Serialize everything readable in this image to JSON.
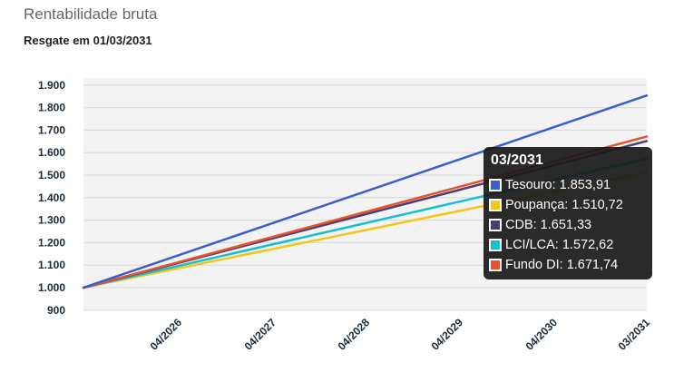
{
  "header": {
    "title": "Rentabilidade bruta",
    "subtitle": "Resgate em 01/03/2031"
  },
  "chart_data": {
    "type": "line",
    "title": "Rentabilidade bruta",
    "subtitle": "Resgate em 01/03/2031",
    "x_tick_labels": [
      "04/2026",
      "04/2027",
      "04/2028",
      "04/2029",
      "04/2030",
      "03/2031"
    ],
    "y_tick_labels": [
      "900",
      "1.000",
      "1.100",
      "1.200",
      "1.300",
      "1.400",
      "1.500",
      "1.600",
      "1.700",
      "1.800",
      "1.900"
    ],
    "y_ticks": [
      900,
      1000,
      1100,
      1200,
      1300,
      1400,
      1500,
      1600,
      1700,
      1800,
      1900
    ],
    "ylim": [
      900,
      1900
    ],
    "grid": true,
    "series": [
      {
        "name": "Tesouro",
        "color": "#3a5fcd",
        "start": 1000,
        "end": 1853.91,
        "end_label": "1.853,91"
      },
      {
        "name": "Poupança",
        "color": "#f5c518",
        "start": 1000,
        "end": 1510.72,
        "end_label": "1.510,72"
      },
      {
        "name": "CDB",
        "color": "#4b3f72",
        "start": 1000,
        "end": 1651.33,
        "end_label": "1.651,33"
      },
      {
        "name": "LCI/LCA",
        "color": "#17becf",
        "start": 1000,
        "end": 1572.62,
        "end_label": "1.572,62"
      },
      {
        "name": "Fundo DI",
        "color": "#e8522f",
        "start": 1000,
        "end": 1671.74,
        "end_label": "1.671,74"
      }
    ]
  },
  "tooltip": {
    "title": "03/2031",
    "rows": [
      {
        "label": "Tesouro: 1.853,91",
        "color": "#3a5fcd"
      },
      {
        "label": "Poupança: 1.510,72",
        "color": "#f5c518"
      },
      {
        "label": "CDB: 1.651,33",
        "color": "#4b3f72"
      },
      {
        "label": "LCI/LCA: 1.572,62",
        "color": "#17becf"
      },
      {
        "label": "Fundo DI: 1.671,74",
        "color": "#e8522f"
      }
    ]
  }
}
